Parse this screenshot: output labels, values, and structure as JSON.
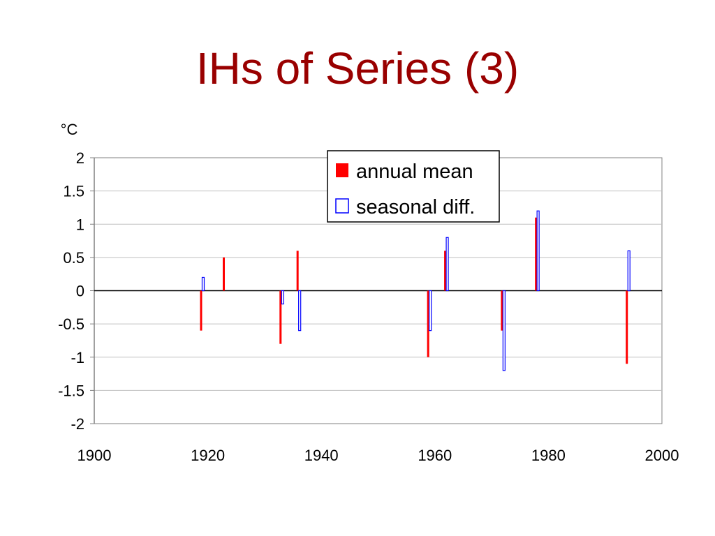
{
  "slide": {
    "title": "IHs of Series (3)"
  },
  "chart_data": {
    "type": "bar",
    "unit_label": "°C",
    "xlim": [
      1900,
      2000
    ],
    "ylim": [
      -2,
      2
    ],
    "x_ticks": [
      1900,
      1920,
      1940,
      1960,
      1980,
      2000
    ],
    "y_ticks": [
      2,
      1.5,
      1,
      0.5,
      0,
      -0.5,
      -1,
      -1.5,
      -2
    ],
    "y_tick_labels": [
      "2",
      "1.5",
      "1",
      "0.5",
      "0",
      "-0.5",
      "-1",
      "-1.5",
      "-2"
    ],
    "x_tick_labels": [
      "1900",
      "1920",
      "1940",
      "1960",
      "1980",
      "2000"
    ],
    "grid": "horizontal",
    "legend_position": "top-right",
    "series": [
      {
        "name": "annual mean",
        "color": "#ff0000",
        "fill": "solid",
        "points": [
          {
            "x": 1919,
            "y": -0.6
          },
          {
            "x": 1923,
            "y": 0.5
          },
          {
            "x": 1933,
            "y": -0.8
          },
          {
            "x": 1936,
            "y": 0.6
          },
          {
            "x": 1959,
            "y": -1.0
          },
          {
            "x": 1962,
            "y": 0.6
          },
          {
            "x": 1972,
            "y": -0.6
          },
          {
            "x": 1978,
            "y": 1.1
          },
          {
            "x": 1994,
            "y": -1.1
          }
        ]
      },
      {
        "name": "seasonal diff.",
        "color": "#0000ff",
        "fill": "none",
        "points": [
          {
            "x": 1919,
            "y": 0.2
          },
          {
            "x": 1933,
            "y": -0.2
          },
          {
            "x": 1936,
            "y": -0.6
          },
          {
            "x": 1959,
            "y": -0.6
          },
          {
            "x": 1962,
            "y": 0.8
          },
          {
            "x": 1972,
            "y": -1.2
          },
          {
            "x": 1978,
            "y": 1.2
          },
          {
            "x": 1994,
            "y": 0.6
          }
        ]
      }
    ]
  }
}
